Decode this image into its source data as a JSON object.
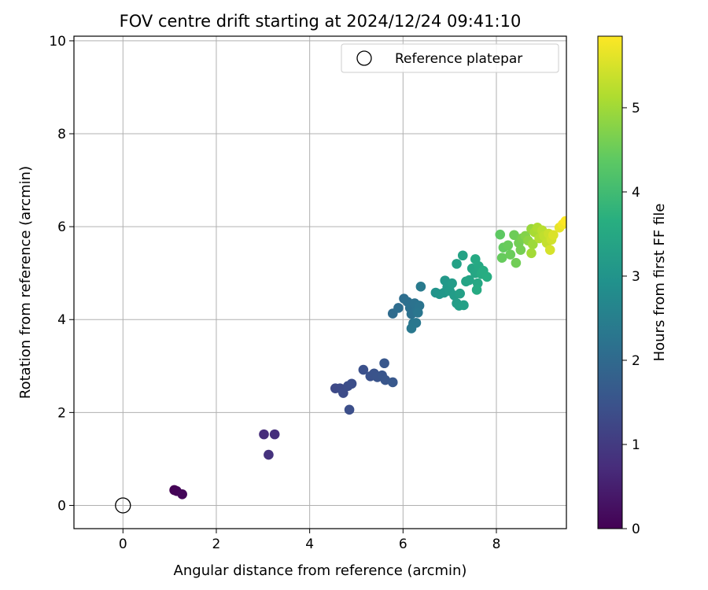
{
  "chart_data": {
    "type": "scatter",
    "title": "FOV centre drift starting at 2024/12/24 09:41:10",
    "xlabel": "Angular distance from reference (arcmin)",
    "ylabel": "Rotation from reference (arcmin)",
    "xlim": [
      -1.05,
      9.5
    ],
    "ylim": [
      -0.5,
      10.1
    ],
    "xticks": [
      0,
      2,
      4,
      6,
      8
    ],
    "yticks": [
      0,
      2,
      4,
      6,
      8,
      10
    ],
    "grid": true,
    "legend": {
      "placement": "upper right",
      "entries": [
        "Reference platepar"
      ]
    },
    "reference_point": {
      "name": "Reference platepar",
      "x": 0,
      "y": 0,
      "marker": "hollow circle"
    },
    "colorbar": {
      "label": "Hours from first FF file",
      "colormap": "viridis",
      "range": [
        0,
        5.85
      ],
      "ticks": [
        0,
        1,
        2,
        3,
        4,
        5
      ]
    },
    "points": [
      {
        "x": 1.1,
        "y": 0.33,
        "c": 0.0
      },
      {
        "x": 1.15,
        "y": 0.31,
        "c": 0.05
      },
      {
        "x": 1.27,
        "y": 0.24,
        "c": 0.1
      },
      {
        "x": 3.02,
        "y": 1.53,
        "c": 0.75
      },
      {
        "x": 3.25,
        "y": 1.53,
        "c": 0.8
      },
      {
        "x": 3.12,
        "y": 1.09,
        "c": 0.85
      },
      {
        "x": 4.55,
        "y": 2.52,
        "c": 1.3
      },
      {
        "x": 4.65,
        "y": 2.52,
        "c": 1.33
      },
      {
        "x": 4.72,
        "y": 2.42,
        "c": 1.36
      },
      {
        "x": 4.82,
        "y": 2.57,
        "c": 1.38
      },
      {
        "x": 4.9,
        "y": 2.62,
        "c": 1.4
      },
      {
        "x": 4.85,
        "y": 2.06,
        "c": 1.42
      },
      {
        "x": 5.15,
        "y": 2.92,
        "c": 1.45
      },
      {
        "x": 5.3,
        "y": 2.78,
        "c": 1.48
      },
      {
        "x": 5.38,
        "y": 2.84,
        "c": 1.5
      },
      {
        "x": 5.45,
        "y": 2.76,
        "c": 1.52
      },
      {
        "x": 5.55,
        "y": 2.8,
        "c": 1.55
      },
      {
        "x": 5.62,
        "y": 2.7,
        "c": 1.57
      },
      {
        "x": 5.6,
        "y": 3.06,
        "c": 1.6
      },
      {
        "x": 5.78,
        "y": 2.65,
        "c": 1.62
      },
      {
        "x": 5.78,
        "y": 4.13,
        "c": 2.05
      },
      {
        "x": 5.9,
        "y": 4.25,
        "c": 2.1
      },
      {
        "x": 6.02,
        "y": 4.45,
        "c": 2.12
      },
      {
        "x": 6.1,
        "y": 4.38,
        "c": 2.15
      },
      {
        "x": 6.15,
        "y": 4.25,
        "c": 2.18
      },
      {
        "x": 6.18,
        "y": 4.12,
        "c": 2.2
      },
      {
        "x": 6.25,
        "y": 4.35,
        "c": 2.22
      },
      {
        "x": 6.3,
        "y": 4.2,
        "c": 2.25
      },
      {
        "x": 6.35,
        "y": 4.3,
        "c": 2.27
      },
      {
        "x": 6.32,
        "y": 4.15,
        "c": 2.3
      },
      {
        "x": 6.22,
        "y": 3.92,
        "c": 2.32
      },
      {
        "x": 6.28,
        "y": 3.93,
        "c": 2.34
      },
      {
        "x": 6.18,
        "y": 3.81,
        "c": 2.36
      },
      {
        "x": 6.38,
        "y": 4.71,
        "c": 2.4
      },
      {
        "x": 6.7,
        "y": 4.58,
        "c": 3.0
      },
      {
        "x": 6.78,
        "y": 4.55,
        "c": 3.05
      },
      {
        "x": 6.88,
        "y": 4.58,
        "c": 3.1
      },
      {
        "x": 6.9,
        "y": 4.84,
        "c": 3.12
      },
      {
        "x": 6.95,
        "y": 4.7,
        "c": 3.15
      },
      {
        "x": 7.0,
        "y": 4.62,
        "c": 3.18
      },
      {
        "x": 7.05,
        "y": 4.78,
        "c": 3.2
      },
      {
        "x": 7.1,
        "y": 4.52,
        "c": 3.22
      },
      {
        "x": 7.15,
        "y": 4.35,
        "c": 3.25
      },
      {
        "x": 7.2,
        "y": 4.3,
        "c": 3.27
      },
      {
        "x": 7.22,
        "y": 4.56,
        "c": 3.3
      },
      {
        "x": 7.3,
        "y": 4.31,
        "c": 3.32
      },
      {
        "x": 7.15,
        "y": 5.2,
        "c": 3.35
      },
      {
        "x": 7.28,
        "y": 5.38,
        "c": 3.38
      },
      {
        "x": 7.35,
        "y": 4.82,
        "c": 3.4
      },
      {
        "x": 7.42,
        "y": 4.85,
        "c": 3.42
      },
      {
        "x": 7.48,
        "y": 5.1,
        "c": 3.45
      },
      {
        "x": 7.55,
        "y": 5.0,
        "c": 3.48
      },
      {
        "x": 7.6,
        "y": 4.78,
        "c": 3.5
      },
      {
        "x": 7.62,
        "y": 5.15,
        "c": 3.52
      },
      {
        "x": 7.55,
        "y": 5.3,
        "c": 3.55
      },
      {
        "x": 7.58,
        "y": 4.64,
        "c": 3.57
      },
      {
        "x": 7.68,
        "y": 4.98,
        "c": 3.6
      },
      {
        "x": 7.72,
        "y": 5.05,
        "c": 3.62
      },
      {
        "x": 7.8,
        "y": 4.92,
        "c": 3.65
      },
      {
        "x": 8.08,
        "y": 5.83,
        "c": 4.4
      },
      {
        "x": 8.15,
        "y": 5.55,
        "c": 4.45
      },
      {
        "x": 8.12,
        "y": 5.33,
        "c": 4.48
      },
      {
        "x": 8.25,
        "y": 5.6,
        "c": 4.5
      },
      {
        "x": 8.3,
        "y": 5.4,
        "c": 4.52
      },
      {
        "x": 8.38,
        "y": 5.82,
        "c": 4.55
      },
      {
        "x": 8.42,
        "y": 5.22,
        "c": 4.58
      },
      {
        "x": 8.48,
        "y": 5.65,
        "c": 4.6
      },
      {
        "x": 8.52,
        "y": 5.5,
        "c": 4.62
      },
      {
        "x": 8.55,
        "y": 5.75,
        "c": 4.65
      },
      {
        "x": 8.62,
        "y": 5.8,
        "c": 4.75
      },
      {
        "x": 8.68,
        "y": 5.7,
        "c": 4.85
      },
      {
        "x": 8.75,
        "y": 5.95,
        "c": 4.95
      },
      {
        "x": 8.78,
        "y": 5.62,
        "c": 5.0
      },
      {
        "x": 8.75,
        "y": 5.43,
        "c": 5.05
      },
      {
        "x": 8.82,
        "y": 5.88,
        "c": 5.1
      },
      {
        "x": 8.88,
        "y": 5.98,
        "c": 5.15
      },
      {
        "x": 8.92,
        "y": 5.75,
        "c": 5.2
      },
      {
        "x": 8.98,
        "y": 5.92,
        "c": 5.25
      },
      {
        "x": 9.02,
        "y": 5.8,
        "c": 5.3
      },
      {
        "x": 9.08,
        "y": 5.65,
        "c": 5.35
      },
      {
        "x": 9.12,
        "y": 5.85,
        "c": 5.4
      },
      {
        "x": 9.18,
        "y": 5.72,
        "c": 5.45
      },
      {
        "x": 9.15,
        "y": 5.5,
        "c": 5.5
      },
      {
        "x": 9.22,
        "y": 5.82,
        "c": 5.55
      },
      {
        "x": 9.35,
        "y": 5.98,
        "c": 5.65
      },
      {
        "x": 9.42,
        "y": 6.05,
        "c": 5.75
      },
      {
        "x": 9.48,
        "y": 6.12,
        "c": 5.85
      }
    ]
  }
}
